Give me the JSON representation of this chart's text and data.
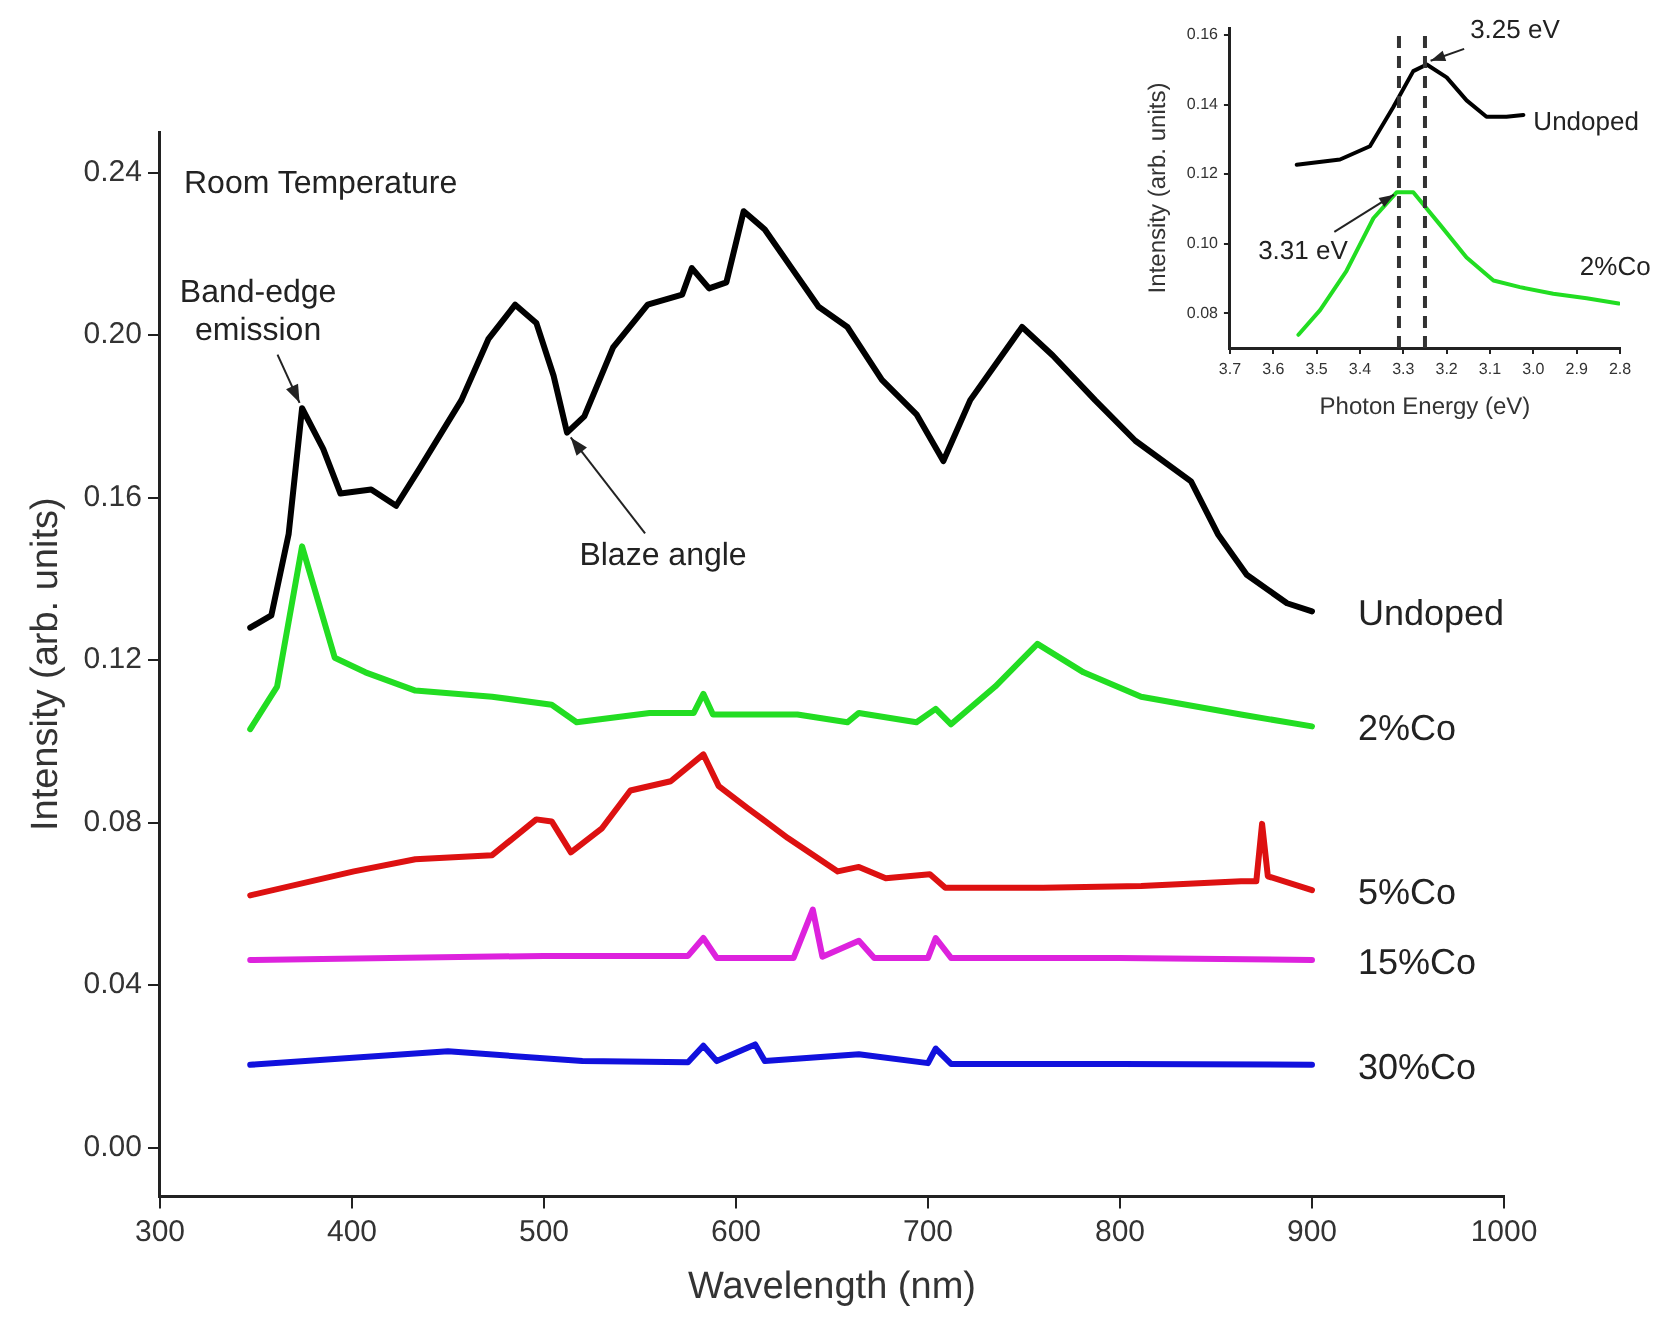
{
  "chart_data": [
    {
      "type": "line",
      "xlabel": "Wavelength (nm)",
      "ylabel": "Intensity (arb. units)",
      "xlim": [
        300,
        1000
      ],
      "ylim": [
        -0.012,
        0.25
      ],
      "xticks": [
        300,
        400,
        500,
        600,
        700,
        800,
        900,
        1000
      ],
      "yticks": [
        {
          "value": 0,
          "label": "0.00"
        },
        0.04,
        0.08,
        0.12,
        0.16,
        {
          "value": 0.2,
          "label": "0.20"
        },
        0.24
      ],
      "grid": false,
      "legend": false,
      "marker": "none",
      "line_style": "solid",
      "annotations": [
        "Room Temperature",
        {
          "text": "Band-edge emission",
          "x": 374,
          "y": 0.182
        },
        {
          "text": "Blaze angle",
          "x": 512,
          "y": 0.176
        }
      ],
      "series": [
        {
          "name": "Undoped",
          "color": "#000000",
          "x": [
            347,
            358,
            367,
            374,
            385,
            394,
            410,
            423,
            435,
            457,
            471,
            485,
            496,
            505,
            512,
            521,
            536,
            554,
            572,
            577,
            586,
            595,
            604,
            615,
            629,
            643,
            658,
            676,
            694,
            708,
            722,
            749,
            765,
            787,
            808,
            837,
            851,
            866,
            887,
            900
          ],
          "values": [
            0.128,
            0.131,
            0.151,
            0.182,
            0.172,
            0.161,
            0.162,
            0.158,
            0.167,
            0.184,
            0.199,
            0.2075,
            0.203,
            0.19,
            0.176,
            0.18,
            0.197,
            0.2075,
            0.21,
            0.2165,
            0.2115,
            0.213,
            0.2305,
            0.226,
            0.2165,
            0.207,
            0.202,
            0.189,
            0.1805,
            0.169,
            0.184,
            0.202,
            0.195,
            0.184,
            0.174,
            0.164,
            0.151,
            0.141,
            0.134,
            0.132
          ]
        },
        {
          "name": "2%Co",
          "color": "#22dd22",
          "x": [
            347,
            361,
            374,
            391,
            407,
            433,
            473,
            504,
            517,
            555,
            578,
            583,
            588,
            632,
            658,
            664,
            694,
            704,
            712,
            735,
            757,
            781,
            811,
            863,
            900
          ],
          "values": [
            0.103,
            0.1135,
            0.148,
            0.1206,
            0.117,
            0.1125,
            0.111,
            0.109,
            0.1047,
            0.107,
            0.107,
            0.1117,
            0.1066,
            0.1066,
            0.1047,
            0.107,
            0.1047,
            0.108,
            0.1042,
            0.1135,
            0.124,
            0.117,
            0.111,
            0.1066,
            0.1037
          ]
        },
        {
          "name": "5%Co",
          "color": "#dd1111",
          "x": [
            347,
            401,
            433,
            473,
            496,
            504,
            514,
            530,
            545,
            566,
            583,
            591,
            606,
            627,
            653,
            664,
            678,
            701,
            709,
            760,
            811,
            863,
            871,
            874,
            877,
            900
          ],
          "values": [
            0.0621,
            0.068,
            0.071,
            0.072,
            0.0808,
            0.0803,
            0.0727,
            0.0785,
            0.0879,
            0.0902,
            0.0968,
            0.089,
            0.0836,
            0.0762,
            0.068,
            0.0691,
            0.0663,
            0.0673,
            0.064,
            0.064,
            0.0644,
            0.0656,
            0.0656,
            0.0797,
            0.0668,
            0.0634
          ]
        },
        {
          "name": "15%Co",
          "color": "#dd22dd",
          "x": [
            347,
            500,
            575,
            583,
            590,
            630,
            640,
            645,
            664,
            672,
            700,
            704,
            712,
            800,
            900
          ],
          "values": [
            0.0462,
            0.0472,
            0.0472,
            0.0516,
            0.0467,
            0.0467,
            0.0586,
            0.047,
            0.0509,
            0.0467,
            0.0467,
            0.0516,
            0.0467,
            0.0467,
            0.0462
          ]
        },
        {
          "name": "30%Co",
          "color": "#1111dd",
          "x": [
            347,
            450,
            520,
            575,
            583,
            590,
            610,
            615,
            664,
            700,
            704,
            712,
            800,
            900
          ],
          "values": [
            0.0204,
            0.0237,
            0.0213,
            0.021,
            0.0251,
            0.0213,
            0.0254,
            0.0213,
            0.023,
            0.0208,
            0.0244,
            0.0206,
            0.0206,
            0.0204
          ]
        }
      ]
    },
    {
      "type": "line",
      "xlabel": "Photon Energy (eV)",
      "ylabel": "Intensity (arb. units)",
      "xlim": [
        3.7,
        2.8
      ],
      "ylim": [
        0.07,
        0.162
      ],
      "xticks": [
        3.7,
        3.6,
        3.5,
        3.4,
        3.3,
        3.2,
        3.1,
        {
          "value": 3,
          "label": "3.0"
        },
        2.9,
        2.8
      ],
      "yticks": [
        0.08,
        {
          "value": 0.1,
          "label": "0.10"
        },
        0.12,
        0.14,
        0.16
      ],
      "grid": false,
      "legend": false,
      "marker": "none",
      "line_style": "solid",
      "annotations": [
        {
          "text": "3.25 eV",
          "x": 3.25,
          "y": 0.152
        },
        {
          "text": "3.31 eV",
          "x": 3.31,
          "y": 0.115
        }
      ],
      "ref_lines": [
        {
          "axis": "x",
          "value": 3.31,
          "color": "#333333",
          "line_style": "dashed"
        },
        {
          "axis": "x",
          "value": 3.25,
          "color": "#333333",
          "line_style": "dashed"
        }
      ],
      "series": [
        {
          "name": "Undoped",
          "color": "#000000",
          "x": [
            3.546,
            3.446,
            3.377,
            3.323,
            3.277,
            3.246,
            3.2,
            3.154,
            3.108,
            3.062,
            3.023
          ],
          "values": [
            0.1227,
            0.1242,
            0.128,
            0.1393,
            0.1496,
            0.1515,
            0.1478,
            0.1412,
            0.1365,
            0.1365,
            0.137
          ]
        },
        {
          "name": "2%Co",
          "color": "#22dd22",
          "x": [
            3.542,
            3.492,
            3.431,
            3.369,
            3.315,
            3.277,
            3.215,
            3.154,
            3.092,
            3.031,
            2.954,
            2.877,
            2.803
          ],
          "values": [
            0.0738,
            0.0809,
            0.0922,
            0.1073,
            0.1148,
            0.1148,
            0.1054,
            0.096,
            0.0894,
            0.0875,
            0.0856,
            0.0843,
            0.0828
          ]
        }
      ]
    }
  ]
}
